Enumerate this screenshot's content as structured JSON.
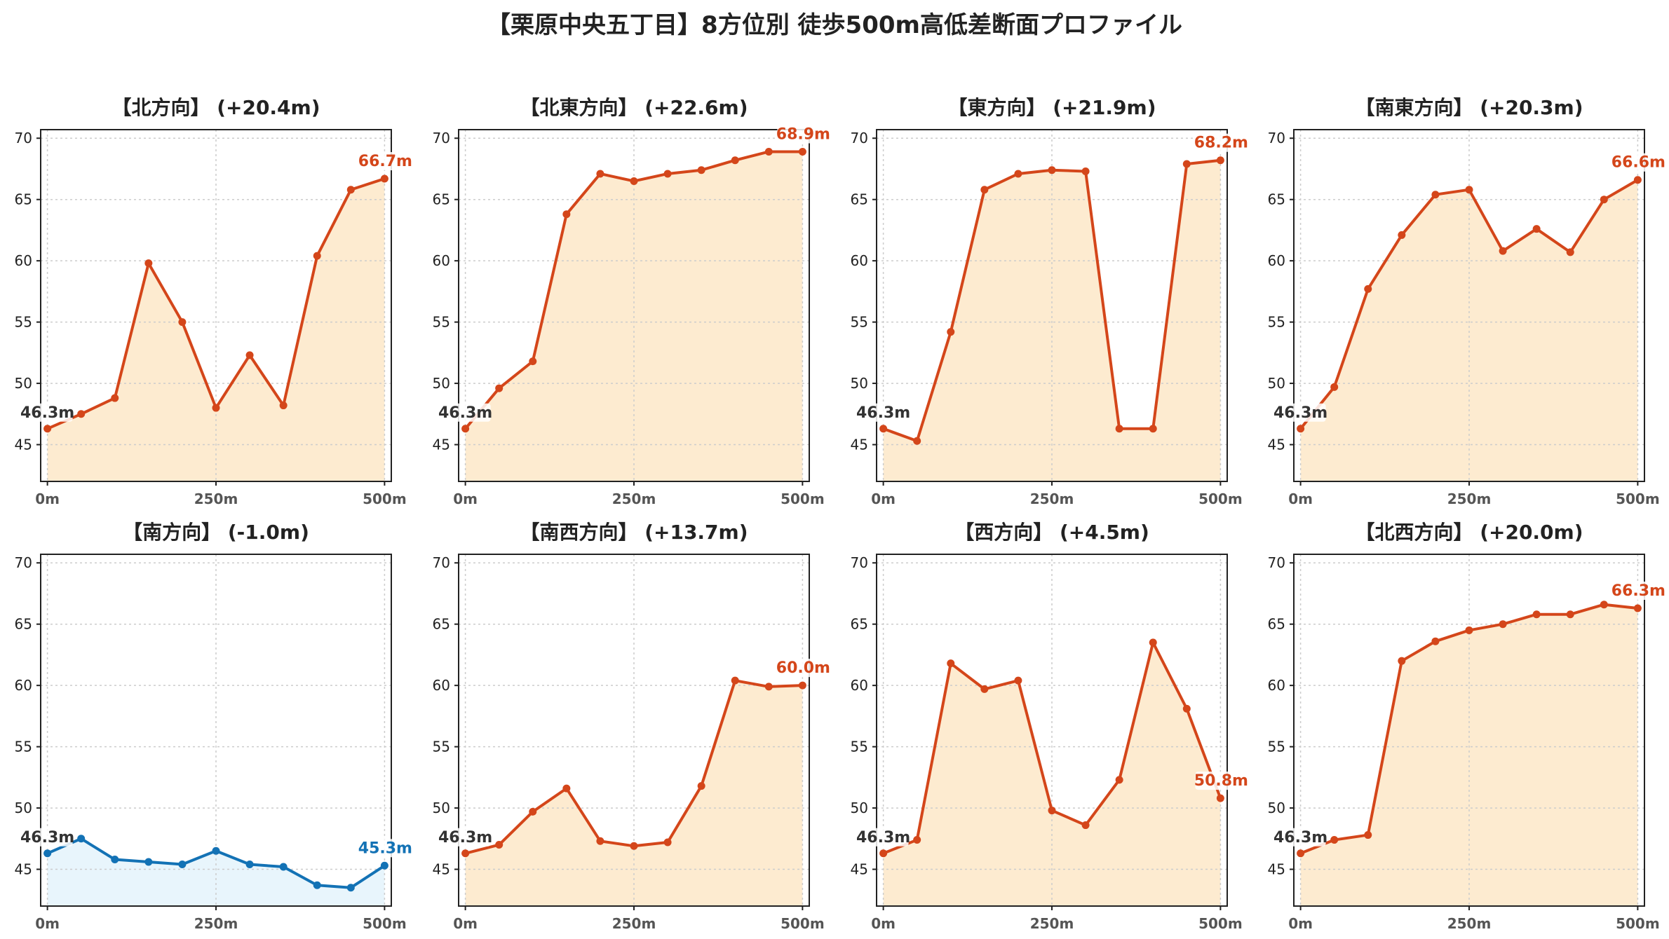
{
  "title": "【栗原中央五丁目】8方位別 徒歩500m高低差断面プロファイル",
  "colors": {
    "up_line": "#d4461a",
    "up_fill": "#fdebd0",
    "down_line": "#1372b5",
    "down_fill": "#e8f5fc",
    "start_label": "#333333",
    "grid": "#cccccc"
  },
  "chart_data": [
    {
      "type": "area",
      "title": "【北方向】 (+20.4m)",
      "x": [
        0,
        50,
        100,
        150,
        200,
        250,
        300,
        350,
        400,
        450,
        500
      ],
      "values": [
        46.3,
        47.5,
        48.8,
        59.8,
        55.0,
        48.0,
        52.3,
        48.2,
        60.4,
        65.8,
        66.7
      ],
      "start_label": "46.3m",
      "end_label": "66.7m",
      "trend": "up",
      "xticks": [
        "0m",
        "250m",
        "500m"
      ],
      "yticks": [
        45,
        50,
        55,
        60,
        65,
        70
      ],
      "ylim": [
        42,
        70.7
      ],
      "xlim": [
        -10,
        510
      ],
      "grid": true
    },
    {
      "type": "area",
      "title": "【北東方向】 (+22.6m)",
      "x": [
        0,
        50,
        100,
        150,
        200,
        250,
        300,
        350,
        400,
        450,
        500
      ],
      "values": [
        46.3,
        49.6,
        51.8,
        63.8,
        67.1,
        66.5,
        67.1,
        67.4,
        68.2,
        68.9,
        68.9
      ],
      "start_label": "46.3m",
      "end_label": "68.9m",
      "trend": "up",
      "xticks": [
        "0m",
        "250m",
        "500m"
      ],
      "yticks": [
        45,
        50,
        55,
        60,
        65,
        70
      ],
      "ylim": [
        42,
        70.7
      ],
      "xlim": [
        -10,
        510
      ],
      "grid": true
    },
    {
      "type": "area",
      "title": "【東方向】 (+21.9m)",
      "x": [
        0,
        50,
        100,
        150,
        200,
        250,
        300,
        350,
        400,
        450,
        500
      ],
      "values": [
        46.3,
        45.3,
        54.2,
        65.8,
        67.1,
        67.4,
        67.3,
        46.3,
        46.3,
        67.9,
        68.2
      ],
      "start_label": "46.3m",
      "end_label": "68.2m",
      "trend": "up",
      "xticks": [
        "0m",
        "250m",
        "500m"
      ],
      "yticks": [
        45,
        50,
        55,
        60,
        65,
        70
      ],
      "ylim": [
        42,
        70.7
      ],
      "xlim": [
        -10,
        510
      ],
      "grid": true
    },
    {
      "type": "area",
      "title": "【南東方向】 (+20.3m)",
      "x": [
        0,
        50,
        100,
        150,
        200,
        250,
        300,
        350,
        400,
        450,
        500
      ],
      "values": [
        46.3,
        49.7,
        57.7,
        62.1,
        65.4,
        65.8,
        60.8,
        62.6,
        60.7,
        65.0,
        66.6
      ],
      "start_label": "46.3m",
      "end_label": "66.6m",
      "trend": "up",
      "xticks": [
        "0m",
        "250m",
        "500m"
      ],
      "yticks": [
        45,
        50,
        55,
        60,
        65,
        70
      ],
      "ylim": [
        42,
        70.7
      ],
      "xlim": [
        -10,
        510
      ],
      "grid": true
    },
    {
      "type": "area",
      "title": "【南方向】 (-1.0m)",
      "x": [
        0,
        50,
        100,
        150,
        200,
        250,
        300,
        350,
        400,
        450,
        500
      ],
      "values": [
        46.3,
        47.5,
        45.8,
        45.6,
        45.4,
        46.5,
        45.4,
        45.2,
        43.7,
        43.5,
        45.3
      ],
      "start_label": "46.3m",
      "end_label": "45.3m",
      "trend": "down",
      "xticks": [
        "0m",
        "250m",
        "500m"
      ],
      "yticks": [
        45,
        50,
        55,
        60,
        65,
        70
      ],
      "ylim": [
        42,
        70.7
      ],
      "xlim": [
        -10,
        510
      ],
      "grid": true
    },
    {
      "type": "area",
      "title": "【南西方向】 (+13.7m)",
      "x": [
        0,
        50,
        100,
        150,
        200,
        250,
        300,
        350,
        400,
        450,
        500
      ],
      "values": [
        46.3,
        47.0,
        49.7,
        51.6,
        47.3,
        46.9,
        47.2,
        51.8,
        60.4,
        59.9,
        60.0
      ],
      "start_label": "46.3m",
      "end_label": "60.0m",
      "trend": "up",
      "xticks": [
        "0m",
        "250m",
        "500m"
      ],
      "yticks": [
        45,
        50,
        55,
        60,
        65,
        70
      ],
      "ylim": [
        42,
        70.7
      ],
      "xlim": [
        -10,
        510
      ],
      "grid": true
    },
    {
      "type": "area",
      "title": "【西方向】 (+4.5m)",
      "x": [
        0,
        50,
        100,
        150,
        200,
        250,
        300,
        350,
        400,
        450,
        500
      ],
      "values": [
        46.3,
        47.4,
        61.8,
        59.7,
        60.4,
        49.8,
        48.6,
        52.3,
        63.5,
        58.1,
        50.8
      ],
      "start_label": "46.3m",
      "end_label": "50.8m",
      "trend": "up",
      "xticks": [
        "0m",
        "250m",
        "500m"
      ],
      "yticks": [
        45,
        50,
        55,
        60,
        65,
        70
      ],
      "ylim": [
        42,
        70.7
      ],
      "xlim": [
        -10,
        510
      ],
      "grid": true
    },
    {
      "type": "area",
      "title": "【北西方向】 (+20.0m)",
      "x": [
        0,
        50,
        100,
        150,
        200,
        250,
        300,
        350,
        400,
        450,
        500
      ],
      "values": [
        46.3,
        47.4,
        47.8,
        62.0,
        63.6,
        64.5,
        65.0,
        65.8,
        65.8,
        66.6,
        66.3
      ],
      "start_label": "46.3m",
      "end_label": "66.3m",
      "trend": "up",
      "xticks": [
        "0m",
        "250m",
        "500m"
      ],
      "yticks": [
        45,
        50,
        55,
        60,
        65,
        70
      ],
      "ylim": [
        42,
        70.7
      ],
      "xlim": [
        -10,
        510
      ],
      "grid": true
    }
  ]
}
